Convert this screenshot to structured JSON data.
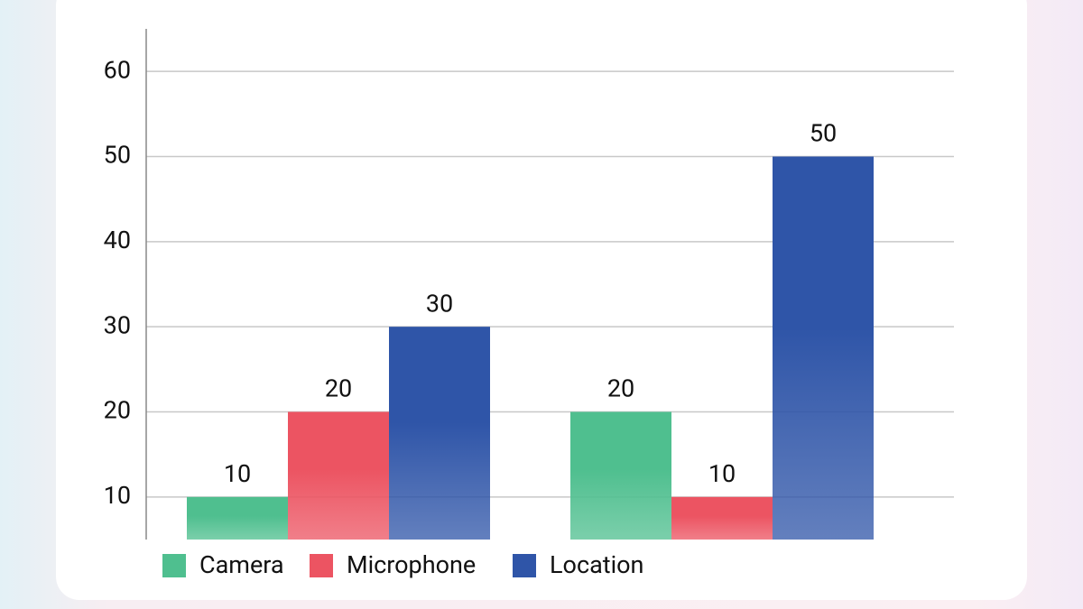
{
  "chart_data": {
    "type": "bar",
    "categories": [
      null,
      null
    ],
    "series": [
      {
        "name": "Camera",
        "color": "#4fbf8f",
        "values": [
          10,
          20
        ]
      },
      {
        "name": "Microphone",
        "color": "#ec5462",
        "values": [
          20,
          10
        ]
      },
      {
        "name": "Location",
        "color": "#2f55a8",
        "values": [
          30,
          50
        ]
      }
    ],
    "ylim": [
      5,
      65
    ],
    "yticks": [
      10,
      20,
      30,
      40,
      50,
      60
    ],
    "grid": true,
    "legend": "bottom"
  }
}
